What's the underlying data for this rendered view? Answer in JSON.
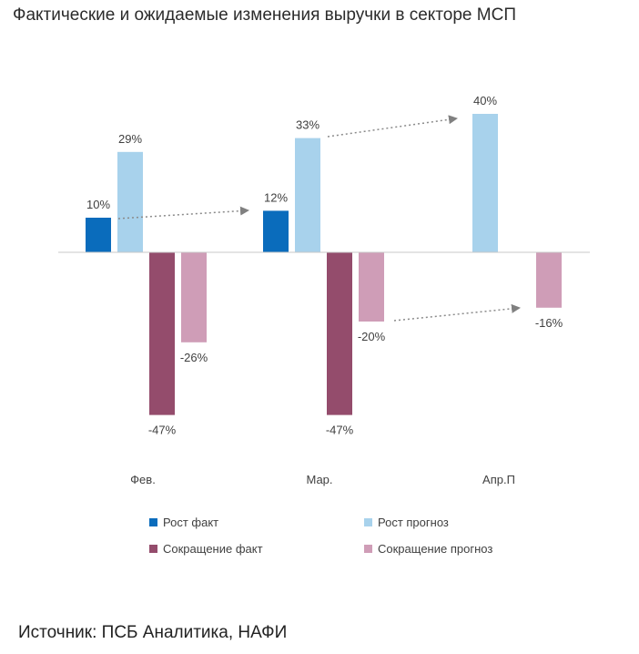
{
  "title": "Фактические и ожидаемые изменения выручки в секторе МСП",
  "source": "Источник: ПСБ Аналитика, НАФИ",
  "chart_data": {
    "type": "bar",
    "categories": [
      "Фев.",
      "Мар.",
      "Апр.П"
    ],
    "series": [
      {
        "name": "Рост факт",
        "color": "#0a6cbc",
        "values": [
          10,
          12,
          null
        ],
        "labels": [
          "10%",
          "12%",
          ""
        ]
      },
      {
        "name": "Рост прогноз",
        "color": "#a8d2ec",
        "values": [
          29,
          33,
          40
        ],
        "labels": [
          "29%",
          "33%",
          "40%"
        ]
      },
      {
        "name": "Сокращение факт",
        "color": "#944c6c",
        "values": [
          -47,
          -47,
          null
        ],
        "labels": [
          "-47%",
          "-47%",
          ""
        ]
      },
      {
        "name": "Сокращение прогноз",
        "color": "#cf9db7",
        "values": [
          -26,
          -20,
          -16
        ],
        "labels": [
          "-26%",
          "-20%",
          "-16%"
        ]
      }
    ],
    "ylim": [
      -47,
      40
    ],
    "legend": "bottom",
    "annotations": "dotted arrows linking forecast to next month's fact/forecast"
  }
}
